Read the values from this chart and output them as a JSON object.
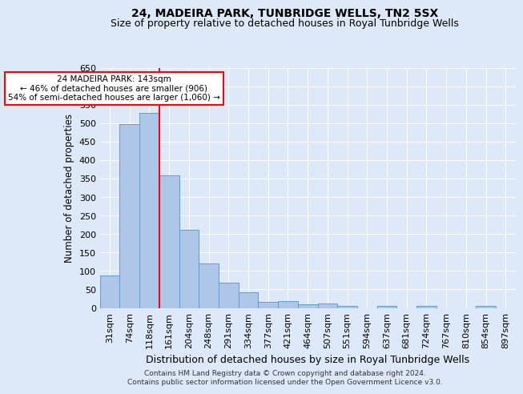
{
  "title": "24, MADEIRA PARK, TUNBRIDGE WELLS, TN2 5SX",
  "subtitle": "Size of property relative to detached houses in Royal Tunbridge Wells",
  "xlabel": "Distribution of detached houses by size in Royal Tunbridge Wells",
  "ylabel": "Number of detached properties",
  "categories": [
    "31sqm",
    "74sqm",
    "118sqm",
    "161sqm",
    "204sqm",
    "248sqm",
    "291sqm",
    "334sqm",
    "377sqm",
    "421sqm",
    "464sqm",
    "507sqm",
    "551sqm",
    "594sqm",
    "637sqm",
    "681sqm",
    "724sqm",
    "767sqm",
    "810sqm",
    "854sqm",
    "897sqm"
  ],
  "values": [
    88,
    498,
    528,
    358,
    212,
    120,
    68,
    42,
    16,
    19,
    10,
    12,
    6,
    0,
    5,
    0,
    5,
    0,
    0,
    5,
    0
  ],
  "bar_color": "#aec6e8",
  "bar_edge_color": "#5a9fd4",
  "vline_x": 2.5,
  "vline_color": "red",
  "annotation_text": "24 MADEIRA PARK: 143sqm\n← 46% of detached houses are smaller (906)\n54% of semi-detached houses are larger (1,060) →",
  "annotation_box_color": "white",
  "annotation_box_edge_color": "red",
  "ylim": [
    0,
    650
  ],
  "yticks": [
    0,
    50,
    100,
    150,
    200,
    250,
    300,
    350,
    400,
    450,
    500,
    550,
    600,
    650
  ],
  "footer_line1": "Contains HM Land Registry data © Crown copyright and database right 2024.",
  "footer_line2": "Contains public sector information licensed under the Open Government Licence v3.0.",
  "title_fontsize": 10,
  "subtitle_fontsize": 9,
  "bg_color": "#dde8f8",
  "plot_bg_color": "#dde8f8"
}
